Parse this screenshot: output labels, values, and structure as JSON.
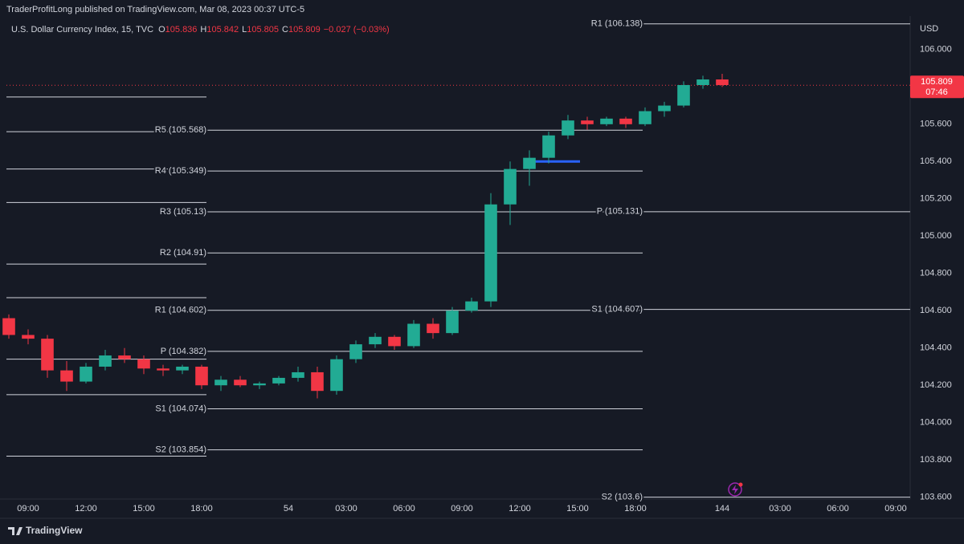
{
  "chart_data": {
    "type": "candlestick",
    "publisher": "TraderProfitLong published on TradingView.com, Mar 08, 2023 00:37 UTC-5",
    "title": "U.S. Dollar Currency Index, 15, TVC",
    "ohlc_legend": [
      {
        "key": "O",
        "value": "105.836"
      },
      {
        "key": "H",
        "value": "105.842"
      },
      {
        "key": "L",
        "value": "105.805"
      },
      {
        "key": "C",
        "value": "105.809"
      }
    ],
    "change": "−0.027 (−0.03%)",
    "currency": "USD",
    "brand": "TradingView",
    "up_color": "#22ab94",
    "down_color": "#f23645",
    "x": [
      -4,
      0,
      4,
      8,
      12,
      16,
      20,
      24,
      28,
      32,
      36,
      40,
      44,
      48,
      52,
      56,
      60,
      64,
      68,
      72,
      76,
      80,
      84,
      88,
      92,
      96,
      100,
      104,
      108,
      112,
      116,
      120,
      124,
      128,
      132,
      136,
      140,
      144
    ],
    "open": [
      104.56,
      104.47,
      104.45,
      104.28,
      104.22,
      104.3,
      104.36,
      104.34,
      104.29,
      104.28,
      104.3,
      104.2,
      104.23,
      104.2,
      104.21,
      104.24,
      104.27,
      104.17,
      104.34,
      104.42,
      104.46,
      104.41,
      104.53,
      104.48,
      104.6,
      104.65,
      105.17,
      105.36,
      105.42,
      105.54,
      105.62,
      105.6,
      105.63,
      105.6,
      105.67,
      105.7,
      105.81,
      105.84
    ],
    "high": [
      104.58,
      104.5,
      104.47,
      104.33,
      104.32,
      104.39,
      104.4,
      104.36,
      104.31,
      104.31,
      104.31,
      104.25,
      104.25,
      104.22,
      104.25,
      104.3,
      104.3,
      104.36,
      104.44,
      104.48,
      104.47,
      104.55,
      104.56,
      104.62,
      104.67,
      105.23,
      105.4,
      105.46,
      105.56,
      105.65,
      105.64,
      105.64,
      105.64,
      105.69,
      105.72,
      105.83,
      105.86,
      105.87
    ],
    "low": [
      104.45,
      104.42,
      104.24,
      104.17,
      104.21,
      104.28,
      104.32,
      104.26,
      104.25,
      104.26,
      104.18,
      104.17,
      104.19,
      104.18,
      104.2,
      104.22,
      104.13,
      104.15,
      104.32,
      104.4,
      104.39,
      104.4,
      104.45,
      104.47,
      104.59,
      104.62,
      105.06,
      105.27,
      105.39,
      105.52,
      105.57,
      105.59,
      105.58,
      105.59,
      105.64,
      105.69,
      105.79,
      105.8
    ],
    "close": [
      104.47,
      104.45,
      104.28,
      104.22,
      104.3,
      104.36,
      104.34,
      104.29,
      104.28,
      104.3,
      104.2,
      104.23,
      104.2,
      104.21,
      104.24,
      104.27,
      104.17,
      104.34,
      104.42,
      104.46,
      104.41,
      104.53,
      104.48,
      104.6,
      104.65,
      105.17,
      105.36,
      105.42,
      105.54,
      105.62,
      105.6,
      105.63,
      105.6,
      105.67,
      105.7,
      105.81,
      105.84,
      105.81
    ],
    "xlim": [
      -4.5,
      183
    ],
    "ylim": [
      103.59,
      106.18
    ],
    "xticks": [
      {
        "value": 0,
        "label": "09:00"
      },
      {
        "value": 12,
        "label": "12:00"
      },
      {
        "value": 24,
        "label": "15:00"
      },
      {
        "value": 36,
        "label": "18:00"
      },
      54,
      {
        "value": 66,
        "label": "03:00"
      },
      {
        "value": 78,
        "label": "06:00"
      },
      {
        "value": 90,
        "label": "09:00"
      },
      {
        "value": 102,
        "label": "12:00"
      },
      {
        "value": 114,
        "label": "15:00"
      },
      {
        "value": 126,
        "label": "18:00"
      },
      144,
      {
        "value": 156,
        "label": "03:00"
      },
      {
        "value": 168,
        "label": "06:00"
      },
      {
        "value": 180,
        "label": "09:00"
      }
    ],
    "yticks": [
      {
        "value": 106,
        "label": "106.000"
      },
      {
        "value": 105.8,
        "label": "105.800"
      },
      {
        "value": 105.6,
        "label": "105.600"
      },
      {
        "value": 105.4,
        "label": "105.400"
      },
      {
        "value": 105.2,
        "label": "105.200"
      },
      {
        "value": 105,
        "label": "105.000"
      },
      {
        "value": 104.8,
        "label": "104.800"
      },
      {
        "value": 104.6,
        "label": "104.600"
      },
      {
        "value": 104.4,
        "label": "104.400"
      },
      {
        "value": 104.2,
        "label": "104.200"
      },
      {
        "value": 104,
        "label": "104.000"
      },
      {
        "value": 103.8,
        "label": "103.800"
      },
      {
        "value": 103.6,
        "label": "103.600"
      }
    ],
    "levels": [
      {
        "value": 105.746,
        "start": -4.5,
        "end": 37
      },
      {
        "value": 105.56,
        "start": -4.5,
        "end": 37
      },
      {
        "value": 105.36,
        "start": -4.5,
        "end": 37
      },
      {
        "value": 105.18,
        "start": -4.5,
        "end": 37
      },
      {
        "value": 104.85,
        "start": -4.5,
        "end": 37
      },
      {
        "value": 104.67,
        "start": -4.5,
        "end": 37
      },
      {
        "value": 104.34,
        "start": -4.5,
        "end": 37
      },
      {
        "value": 104.15,
        "start": -4.5,
        "end": 37
      },
      {
        "value": 103.82,
        "start": -4.5,
        "end": 37
      },
      {
        "label": "R5 (105.568)",
        "value": 105.568,
        "start": 37,
        "end": 127.5
      },
      {
        "label": "R4 (105.349)",
        "value": 105.349,
        "start": 37,
        "end": 127.5
      },
      {
        "label": "R3 (105.13)",
        "value": 105.13,
        "start": 37,
        "end": 127.5
      },
      {
        "label": "R2 (104.91)",
        "value": 104.91,
        "start": 37,
        "end": 127.5
      },
      {
        "label": "R1 (104.602)",
        "value": 104.602,
        "start": 37,
        "end": 127.5
      },
      {
        "label": "P (104.382)",
        "value": 104.382,
        "start": 37,
        "end": 127.5
      },
      {
        "label": "S1 (104.074)",
        "value": 104.074,
        "start": 37,
        "end": 127.5
      },
      {
        "label": "S2 (103.854)",
        "value": 103.854,
        "start": 37,
        "end": 127.5
      },
      {
        "label": "R1 (106.138)",
        "value": 106.138,
        "start": 127.5,
        "end": 183
      },
      {
        "label": "P (105.131)",
        "value": 105.131,
        "start": 127.5,
        "end": 183
      },
      {
        "label": "S1 (104.607)",
        "value": 104.607,
        "start": 127.5,
        "end": 183
      },
      {
        "label": "S2 (103.6)",
        "value": 103.6,
        "start": 127.5,
        "end": 183
      }
    ],
    "drawings": [
      {
        "value": 105.4,
        "start": 104.5,
        "end": 114.5,
        "color": "#2962ff"
      }
    ],
    "last_price": 105.809,
    "countdown": "07:46"
  }
}
